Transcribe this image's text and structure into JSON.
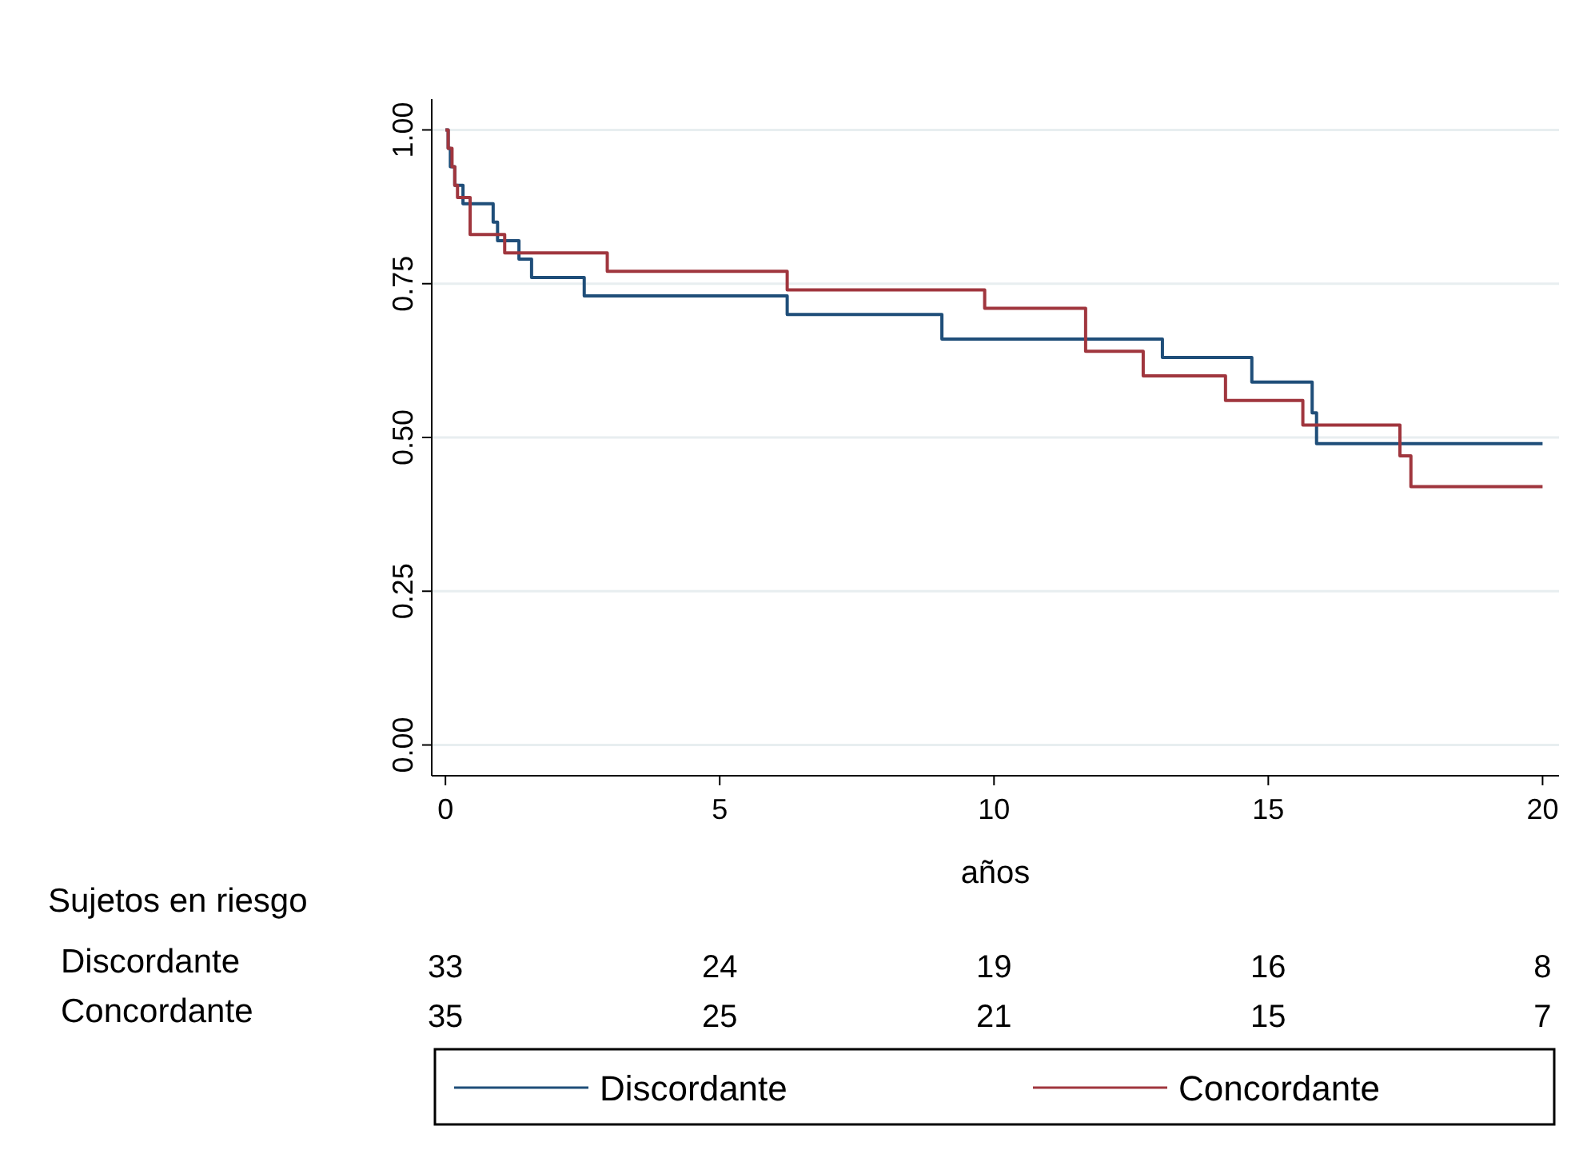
{
  "chart_data": {
    "type": "step",
    "xlabel": "años",
    "xlim": [
      -0.25,
      20.3
    ],
    "xticks": [
      0,
      5,
      10,
      15,
      20
    ],
    "ylim": [
      -0.05,
      1.05
    ],
    "yticks": [
      {
        "value": 0,
        "label": "0.00"
      },
      {
        "value": 0.25,
        "label": "0.25"
      },
      {
        "value": 0.5,
        "label": "0.50"
      },
      {
        "value": 0.75,
        "label": "0.75"
      },
      {
        "value": 1,
        "label": "1.00"
      }
    ],
    "grid": "y",
    "legend": "bottom",
    "series": [
      {
        "name": "Discordante",
        "color": "#1f4e79",
        "x": [
          0,
          0.05,
          0.09,
          0.17,
          0.32,
          0.87,
          0.95,
          1.34,
          1.57,
          2.53,
          6.23,
          9.05,
          13.07,
          14.7,
          15.8,
          15.88,
          20
        ],
        "values": [
          1,
          0.97,
          0.94,
          0.91,
          0.88,
          0.85,
          0.82,
          0.79,
          0.76,
          0.73,
          0.7,
          0.66,
          0.63,
          0.59,
          0.54,
          0.49,
          0.49
        ]
      },
      {
        "name": "Concordante",
        "color": "#a0363e",
        "x": [
          0,
          0.05,
          0.12,
          0.17,
          0.22,
          0.45,
          1.08,
          2.95,
          6.23,
          9.83,
          11.67,
          12.72,
          14.22,
          15.63,
          17.4,
          17.6,
          20
        ],
        "values": [
          1,
          0.97,
          0.94,
          0.91,
          0.89,
          0.83,
          0.8,
          0.77,
          0.74,
          0.71,
          0.64,
          0.6,
          0.56,
          0.52,
          0.47,
          0.42,
          0.42
        ]
      }
    ],
    "annotations": [
      "Sujetos en riesgo",
      "Discordante",
      "33",
      "24",
      "19",
      "16",
      "8",
      "Concordante",
      "35",
      "25",
      "21",
      "15",
      "7"
    ]
  }
}
